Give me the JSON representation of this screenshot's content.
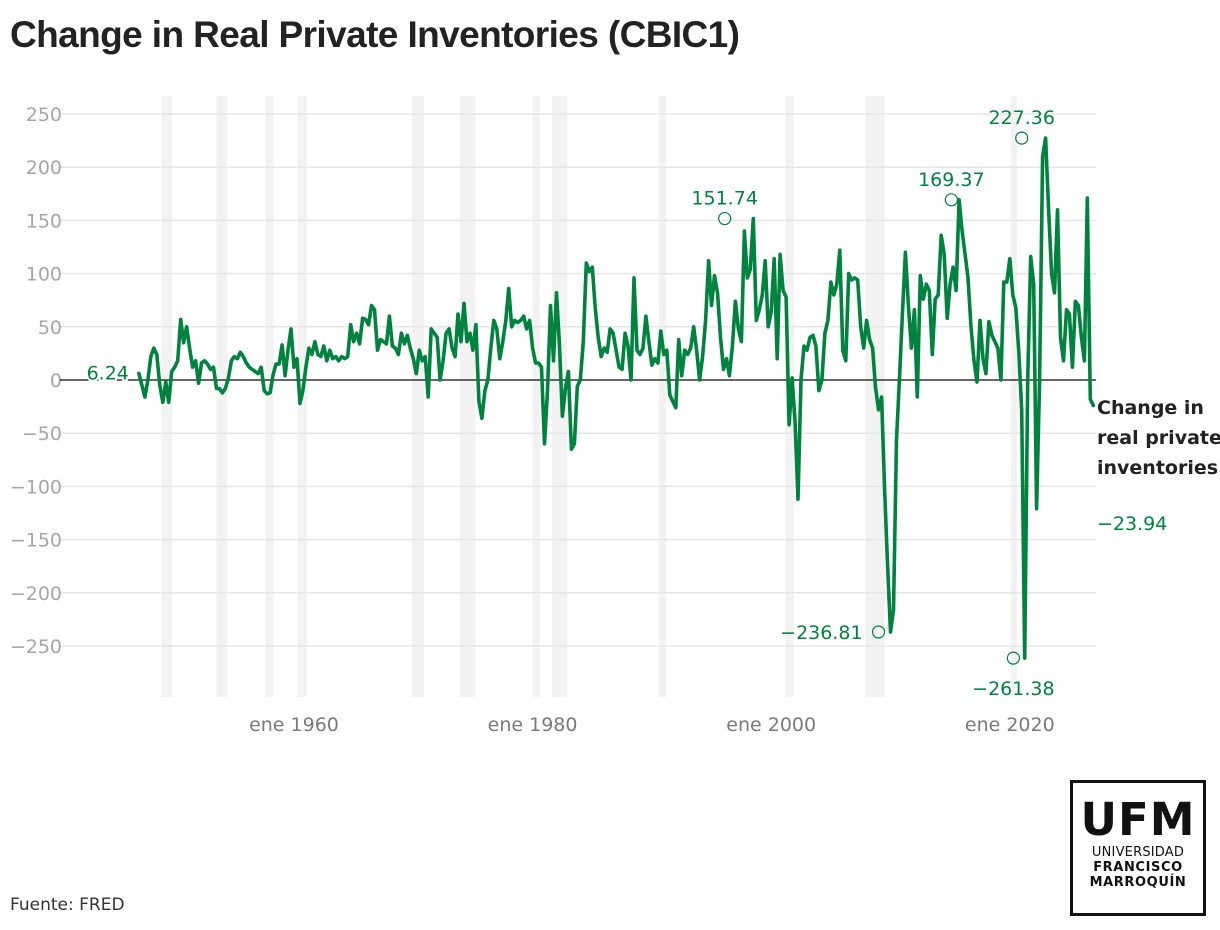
{
  "title": "Change in Real Private Inventories (CBIC1)",
  "source": "Fuente: FRED",
  "logo": {
    "main": "UFM",
    "line1": "UNIVERSIDAD",
    "line2": "FRANCISCO",
    "line3": "MARROQUÍN"
  },
  "colors": {
    "line": "#00833e",
    "grid": "#e6e6e6",
    "zero": "#333333",
    "recession": "#f2f2f2"
  },
  "chart_data": {
    "type": "line",
    "title": "Change in Real Private Inventories (CBIC1)",
    "xlabel": "",
    "ylabel": "",
    "ylim": [
      -300,
      260
    ],
    "xlim": [
      1945.2,
      2025.6
    ],
    "grid": true,
    "yticks": [
      250,
      200,
      150,
      100,
      50,
      0,
      -50,
      -100,
      -150,
      -200,
      -250
    ],
    "ytick_labels": [
      "250",
      "200",
      "150",
      "100",
      "50",
      "0",
      "−50",
      "−100",
      "−150",
      "−200",
      "−250"
    ],
    "xticks": [
      1960,
      1980,
      2000,
      2020
    ],
    "xtick_labels": [
      "ene 1960",
      "ene 1980",
      "ene 2000",
      "ene 2020"
    ],
    "series": [
      {
        "name": "Change in real private inventories",
        "start": 1947.0,
        "frequency": "quarterly",
        "last_value_label": "−23.94",
        "values": [
          6.24,
          -5,
          -16,
          0,
          22,
          30,
          24,
          -5,
          -21,
          -2,
          -21,
          8,
          12,
          18,
          57,
          35,
          50,
          30,
          12,
          18,
          -3,
          16,
          18,
          15,
          10,
          12,
          -8,
          -8,
          -12,
          -8,
          2,
          18,
          22,
          20,
          26,
          22,
          16,
          12,
          10,
          8,
          6,
          12,
          -10,
          -13,
          -12,
          5,
          15,
          15,
          33,
          4,
          28,
          48,
          12,
          20,
          -22,
          -10,
          12,
          30,
          24,
          36,
          24,
          22,
          32,
          18,
          28,
          20,
          22,
          18,
          22,
          20,
          22,
          52,
          36,
          44,
          34,
          58,
          57,
          52,
          70,
          66,
          28,
          38,
          36,
          34,
          60,
          32,
          30,
          24,
          44,
          34,
          42,
          30,
          20,
          6,
          28,
          18,
          22,
          -16,
          48,
          44,
          40,
          0,
          18,
          44,
          48,
          30,
          22,
          62,
          36,
          72,
          36,
          44,
          28,
          52,
          -20,
          -36,
          -10,
          0,
          30,
          56,
          48,
          20,
          36,
          56,
          86,
          50,
          56,
          54,
          56,
          60,
          48,
          56,
          30,
          16,
          16,
          12,
          -60,
          -10,
          70,
          18,
          82,
          34,
          -34,
          -8,
          8,
          -65,
          -60,
          -6,
          0,
          36,
          110,
          102,
          106,
          68,
          40,
          22,
          30,
          26,
          48,
          44,
          28,
          12,
          10,
          44,
          32,
          0,
          96,
          28,
          24,
          30,
          60,
          36,
          14,
          20,
          16,
          46,
          24,
          28,
          -14,
          -20,
          -26,
          38,
          4,
          28,
          24,
          30,
          50,
          28,
          0,
          22,
          56,
          112,
          70,
          98,
          82,
          40,
          10,
          20,
          4,
          32,
          74,
          48,
          36,
          140,
          96,
          104,
          151.74,
          56,
          66,
          80,
          112,
          50,
          64,
          114,
          20,
          118,
          84,
          78,
          -42,
          2,
          -40,
          -112,
          0,
          32,
          28,
          40,
          42,
          32,
          -10,
          0,
          44,
          56,
          92,
          80,
          90,
          122,
          28,
          18,
          100,
          94,
          96,
          94,
          50,
          30,
          56,
          38,
          30,
          -8,
          -28,
          -16,
          -100,
          -172,
          -236.81,
          -216,
          -56,
          0,
          62,
          120,
          70,
          30,
          66,
          -16,
          98,
          76,
          90,
          84,
          24,
          76,
          80,
          136,
          118,
          58,
          90,
          106,
          84,
          169.37,
          140,
          118,
          96,
          50,
          18,
          -2,
          56,
          20,
          6,
          55,
          42,
          36,
          30,
          0,
          92,
          92,
          114,
          80,
          68,
          28,
          -28,
          -261.38,
          0,
          116,
          90,
          -121,
          0,
          210,
          227.36,
          160,
          100,
          82,
          160,
          40,
          18,
          66,
          62,
          12,
          74,
          70,
          40,
          18,
          171,
          -18,
          -23.94
        ]
      }
    ],
    "recessions": [
      [
        1948.9,
        1949.8
      ],
      [
        1953.5,
        1954.4
      ],
      [
        1957.6,
        1958.3
      ],
      [
        1960.3,
        1961.1
      ],
      [
        1969.9,
        1970.9
      ],
      [
        1973.9,
        1975.2
      ],
      [
        1980.0,
        1980.6
      ],
      [
        1981.6,
        1982.9
      ],
      [
        1990.6,
        1991.2
      ],
      [
        2001.2,
        2001.9
      ],
      [
        2007.9,
        2009.5
      ],
      [
        2020.1,
        2020.4
      ]
    ],
    "annotations": [
      {
        "label": "6.24",
        "x": 1947.0,
        "y": 6.24,
        "placement": "left",
        "marker": false
      },
      {
        "label": "151.74",
        "x": 1996.1,
        "y": 151.74,
        "placement": "above",
        "marker": true
      },
      {
        "label": "169.37",
        "x": 2015.1,
        "y": 169.37,
        "placement": "above",
        "marker": true
      },
      {
        "label": "227.36",
        "x": 2021.0,
        "y": 227.36,
        "placement": "above",
        "marker": true
      },
      {
        "label": "−236.81",
        "x": 2009.0,
        "y": -236.81,
        "placement": "left",
        "marker": true
      },
      {
        "label": "−261.38",
        "x": 2020.3,
        "y": -261.38,
        "placement": "below",
        "marker": true
      }
    ]
  }
}
